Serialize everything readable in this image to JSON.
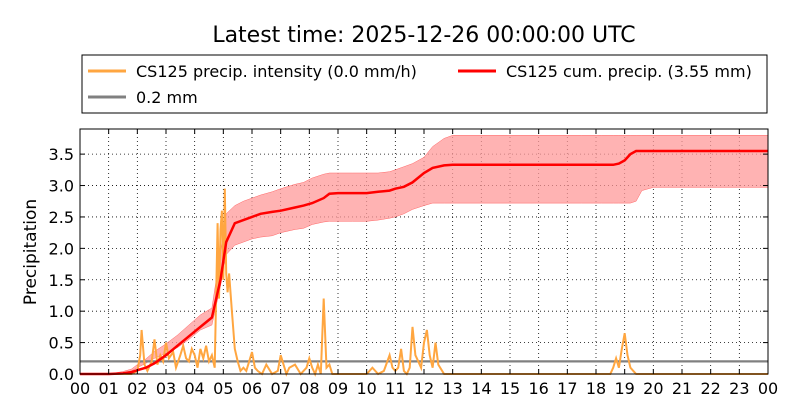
{
  "chart_data": {
    "type": "line",
    "title": "Latest time: 2025-12-26 00:00:00 UTC",
    "ylabel": "Precipitation",
    "xlabel": "",
    "xlim": [
      0,
      24
    ],
    "ylim": [
      0,
      3.9
    ],
    "grid": true,
    "x_ticks": [
      "00",
      "01",
      "02",
      "03",
      "04",
      "05",
      "06",
      "07",
      "08",
      "09",
      "10",
      "11",
      "12",
      "13",
      "14",
      "15",
      "16",
      "17",
      "18",
      "19",
      "20",
      "21",
      "22",
      "23",
      "00"
    ],
    "y_ticks": [
      "0.0",
      "0.5",
      "1.0",
      "1.5",
      "2.0",
      "2.5",
      "3.0",
      "3.5"
    ],
    "y_tick_values": [
      0,
      0.5,
      1.0,
      1.5,
      2.0,
      2.5,
      3.0,
      3.5
    ],
    "legend": {
      "placement": "top",
      "entries": [
        {
          "label": "CS125 precip. intensity (0.0 mm/h)",
          "color": "#ffa640"
        },
        {
          "label": "CS125 cum. precip. (3.55 mm)",
          "color": "#ff0000"
        },
        {
          "label": "0.2 mm",
          "color": "#808080"
        }
      ]
    },
    "series": [
      {
        "name": "CS125 precip. intensity (0.0 mm/h)",
        "kind": "line",
        "color": "#ffa640",
        "x": [
          0,
          1.0,
          1.8,
          2.0,
          2.1,
          2.15,
          2.25,
          2.35,
          2.5,
          2.6,
          2.7,
          2.8,
          2.9,
          3.0,
          3.1,
          3.25,
          3.35,
          3.5,
          3.6,
          3.7,
          3.8,
          3.9,
          4.0,
          4.1,
          4.2,
          4.3,
          4.4,
          4.5,
          4.6,
          4.7,
          4.8,
          4.85,
          4.9,
          4.95,
          5.0,
          5.05,
          5.1,
          5.15,
          5.2,
          5.3,
          5.4,
          5.5,
          5.6,
          5.7,
          5.8,
          6.0,
          6.1,
          6.2,
          6.35,
          6.5,
          6.7,
          6.9,
          7.0,
          7.2,
          7.3,
          7.5,
          7.7,
          7.9,
          8.0,
          8.1,
          8.2,
          8.3,
          8.4,
          8.5,
          8.6,
          8.7,
          8.8,
          9.0,
          9.5,
          10.0,
          10.2,
          10.4,
          10.6,
          10.8,
          10.9,
          11.0,
          11.1,
          11.2,
          11.3,
          11.4,
          11.5,
          11.6,
          11.7,
          11.8,
          11.9,
          12.0,
          12.1,
          12.2,
          12.3,
          12.4,
          12.5,
          12.7,
          13.0,
          14,
          15,
          16,
          17,
          18.0,
          18.5,
          18.6,
          18.7,
          18.8,
          18.9,
          19.0,
          19.1,
          19.2,
          19.3,
          19.4,
          19.6,
          20,
          21,
          22,
          23,
          24
        ],
        "y": [
          0,
          0,
          0,
          0.05,
          0.3,
          0.7,
          0.15,
          0.05,
          0.2,
          0.55,
          0.15,
          0.3,
          0.2,
          0.5,
          0.25,
          0.35,
          0.1,
          0.3,
          0.45,
          0.25,
          0.2,
          0.4,
          0.3,
          0.1,
          0.4,
          0.25,
          0.45,
          0.2,
          0.3,
          0.1,
          2.4,
          1.2,
          2.3,
          2.6,
          1.5,
          2.95,
          1.6,
          1.3,
          1.6,
          1.0,
          0.4,
          0.2,
          0.05,
          0.1,
          0.05,
          0.35,
          0.1,
          0.05,
          0.0,
          0.15,
          0.0,
          0.05,
          0.3,
          0.0,
          0.1,
          0.15,
          0.0,
          0.1,
          0.25,
          0.1,
          0.0,
          0.15,
          0.0,
          1.2,
          0.1,
          0.15,
          0.0,
          0.0,
          0.0,
          0.0,
          0.1,
          0.0,
          0.05,
          0.3,
          0.1,
          0.05,
          0.1,
          0.4,
          0.05,
          0.0,
          0.1,
          0.75,
          0.3,
          0.2,
          0.1,
          0.5,
          0.7,
          0.3,
          0.1,
          0.5,
          0.15,
          0.0,
          0.0,
          0,
          0,
          0,
          0,
          0,
          0.0,
          0.1,
          0.25,
          0.1,
          0.4,
          0.65,
          0.3,
          0.1,
          0.05,
          0.0,
          0.0,
          0,
          0,
          0,
          0,
          0
        ]
      },
      {
        "name": "CS125 cum. precip. (3.55 mm)",
        "kind": "line",
        "color": "#ff0000",
        "band_color": "#ff9999",
        "band_lower": [
          0,
          0,
          0.02,
          0.05,
          0.1,
          0.17,
          0.25,
          0.33,
          0.42,
          0.55,
          0.7,
          0.78,
          1.4,
          1.9,
          2.05,
          2.1,
          2.15,
          2.18,
          2.2,
          2.25,
          2.3,
          2.32,
          2.38,
          2.42,
          2.43,
          2.43,
          2.43,
          2.43,
          2.45,
          2.48,
          2.5,
          2.55,
          2.62,
          2.68,
          2.72,
          2.72,
          2.72,
          2.72,
          2.72,
          2.72,
          2.72,
          2.72,
          2.72,
          2.72,
          2.72,
          2.72,
          2.72,
          2.72,
          2.72,
          2.75,
          2.92,
          2.97,
          2.97,
          2.97,
          2.97
        ],
        "band_upper": [
          0,
          0,
          0.04,
          0.08,
          0.15,
          0.24,
          0.36,
          0.48,
          0.62,
          0.78,
          0.94,
          1.05,
          1.95,
          2.55,
          2.68,
          2.75,
          2.8,
          2.85,
          2.9,
          2.95,
          3.02,
          3.05,
          3.12,
          3.18,
          3.2,
          3.2,
          3.2,
          3.2,
          3.2,
          3.22,
          3.25,
          3.3,
          3.35,
          3.45,
          3.62,
          3.75,
          3.8,
          3.8,
          3.8,
          3.8,
          3.8,
          3.8,
          3.8,
          3.8,
          3.8,
          3.8,
          3.8,
          3.8,
          3.8,
          3.8,
          3.8,
          3.8,
          3.8,
          3.8,
          3.8
        ],
        "x": [
          0,
          1.0,
          1.5,
          1.8,
          2.0,
          2.3,
          2.6,
          3.0,
          3.4,
          3.8,
          4.2,
          4.6,
          4.9,
          5.1,
          5.4,
          5.7,
          6.0,
          6.3,
          6.7,
          7.0,
          7.5,
          7.8,
          8.1,
          8.5,
          8.7,
          9.0,
          9.5,
          10.0,
          10.4,
          10.8,
          11.0,
          11.3,
          11.6,
          12.0,
          12.3,
          12.7,
          13.0,
          14,
          15,
          16,
          17,
          17.5,
          18.0,
          18.2,
          18.4,
          18.6,
          18.8,
          19.0,
          19.2,
          19.4,
          19.6,
          20,
          21,
          22,
          24
        ],
        "y": [
          0,
          0,
          0.01,
          0.03,
          0.06,
          0.1,
          0.17,
          0.3,
          0.45,
          0.6,
          0.75,
          0.9,
          1.5,
          2.1,
          2.4,
          2.45,
          2.5,
          2.55,
          2.58,
          2.6,
          2.65,
          2.68,
          2.72,
          2.8,
          2.87,
          2.88,
          2.88,
          2.88,
          2.9,
          2.92,
          2.95,
          2.98,
          3.05,
          3.2,
          3.28,
          3.32,
          3.33,
          3.33,
          3.33,
          3.33,
          3.33,
          3.33,
          3.33,
          3.33,
          3.33,
          3.33,
          3.35,
          3.4,
          3.5,
          3.55,
          3.55,
          3.55,
          3.55,
          3.55,
          3.55
        ]
      },
      {
        "name": "0.2 mm",
        "kind": "hline",
        "color": "#808080",
        "x": [
          0,
          24
        ],
        "y": [
          0.2,
          0.2
        ]
      }
    ]
  }
}
